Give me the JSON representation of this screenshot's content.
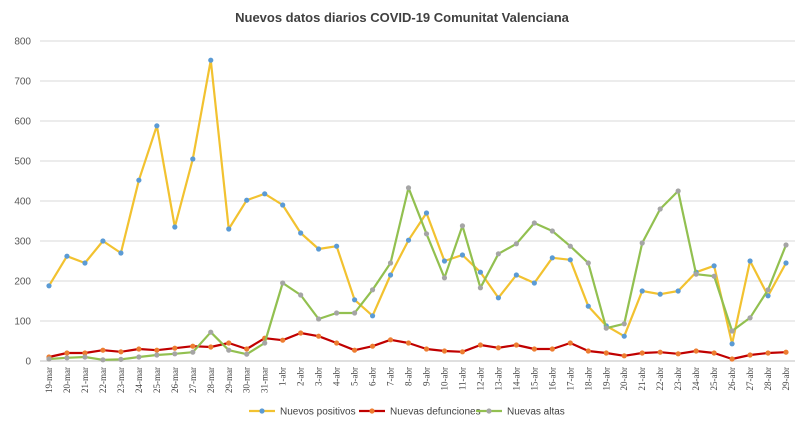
{
  "chart_data": {
    "type": "line",
    "title": "Nuevos datos diarios COVID-19 Comunitat Valenciana",
    "xlabel": "",
    "ylabel": "",
    "ylim": [
      0,
      800
    ],
    "yticks": [
      0,
      100,
      200,
      300,
      400,
      500,
      600,
      700,
      800
    ],
    "grid": true,
    "legend_position": "bottom",
    "categories": [
      "19-mar",
      "20-mar",
      "21-mar",
      "22-mar",
      "23-mar",
      "24-mar",
      "25-mar",
      "26-mar",
      "27-mar",
      "28-mar",
      "29-mar",
      "30-mar",
      "31-mar",
      "1-abr",
      "2-abr",
      "3-abr",
      "4-abr",
      "5-abr",
      "6-abr",
      "7-abr",
      "8-abr",
      "9-abr",
      "10-abr",
      "11-abr",
      "12-abr",
      "13-abr",
      "14-abr",
      "15-abr",
      "16-abr",
      "17-abr",
      "18-abr",
      "19-abr",
      "20-abr",
      "21-abr",
      "22-abr",
      "23-abr",
      "24-abr",
      "25-abr",
      "26-abr",
      "27-abr",
      "28-abr",
      "29-abr"
    ],
    "series": [
      {
        "name": "Nuevos positivos",
        "color": "#F2C230",
        "marker_color": "#5B9BD5",
        "values": [
          188,
          262,
          245,
          300,
          270,
          452,
          588,
          335,
          505,
          752,
          330,
          402,
          418,
          390,
          320,
          280,
          287,
          153,
          113,
          215,
          302,
          370,
          250,
          265,
          222,
          158,
          215,
          195,
          258,
          253,
          137,
          88,
          62,
          175,
          167,
          175,
          222,
          238,
          43,
          250,
          163,
          245
        ]
      },
      {
        "name": "Nuevas defunciones",
        "color": "#C00000",
        "marker_color": "#ED7D31",
        "values": [
          10,
          20,
          20,
          27,
          23,
          30,
          27,
          32,
          37,
          35,
          45,
          30,
          57,
          52,
          70,
          62,
          45,
          27,
          37,
          53,
          45,
          30,
          25,
          23,
          40,
          33,
          40,
          30,
          30,
          45,
          25,
          20,
          13,
          20,
          22,
          18,
          25,
          20,
          5,
          15,
          20,
          22
        ]
      },
      {
        "name": "Nuevas altas",
        "color": "#92C050",
        "marker_color": "#A5A5A5",
        "values": [
          5,
          8,
          10,
          3,
          4,
          10,
          15,
          18,
          22,
          72,
          27,
          17,
          45,
          195,
          165,
          105,
          120,
          120,
          178,
          245,
          433,
          318,
          208,
          338,
          183,
          268,
          293,
          345,
          325,
          287,
          245,
          82,
          93,
          295,
          380,
          425,
          217,
          212,
          75,
          108,
          178,
          290
        ]
      }
    ]
  }
}
